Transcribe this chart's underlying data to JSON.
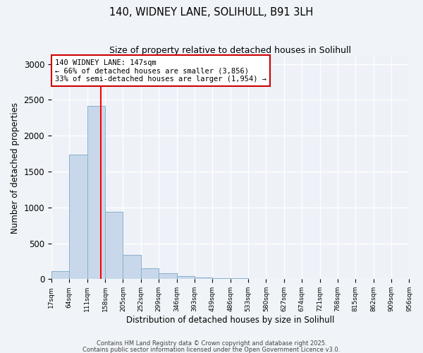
{
  "title": "140, WIDNEY LANE, SOLIHULL, B91 3LH",
  "subtitle": "Size of property relative to detached houses in Solihull",
  "xlabel": "Distribution of detached houses by size in Solihull",
  "ylabel": "Number of detached properties",
  "bar_values": [
    110,
    1740,
    2420,
    940,
    340,
    155,
    80,
    45,
    25,
    15,
    10,
    8,
    0,
    0,
    0,
    0,
    0,
    0,
    0,
    0
  ],
  "bin_labels": [
    "17sqm",
    "64sqm",
    "111sqm",
    "158sqm",
    "205sqm",
    "252sqm",
    "299sqm",
    "346sqm",
    "393sqm",
    "439sqm",
    "486sqm",
    "533sqm",
    "580sqm",
    "627sqm",
    "674sqm",
    "721sqm",
    "768sqm",
    "815sqm",
    "862sqm",
    "909sqm",
    "956sqm"
  ],
  "bar_color": "#c8d8ea",
  "bar_edge_color": "#8ab0cc",
  "vline_color": "red",
  "annotation_line1": "140 WIDNEY LANE: 147sqm",
  "annotation_line2": "← 66% of detached houses are smaller (3,856)",
  "annotation_line3": "33% of semi-detached houses are larger (1,954) →",
  "annotation_box_color": "white",
  "annotation_box_edge": "#cc0000",
  "ylim": [
    0,
    3100
  ],
  "yticks": [
    0,
    500,
    1000,
    1500,
    2000,
    2500,
    3000
  ],
  "footer1": "Contains HM Land Registry data © Crown copyright and database right 2025.",
  "footer2": "Contains public sector information licensed under the Open Government Licence v3.0.",
  "bg_color": "#f0f4f8",
  "plot_bg_color": "#eef2f8",
  "grid_color": "#ffffff",
  "title_fontsize": 10.5,
  "subtitle_fontsize": 9
}
